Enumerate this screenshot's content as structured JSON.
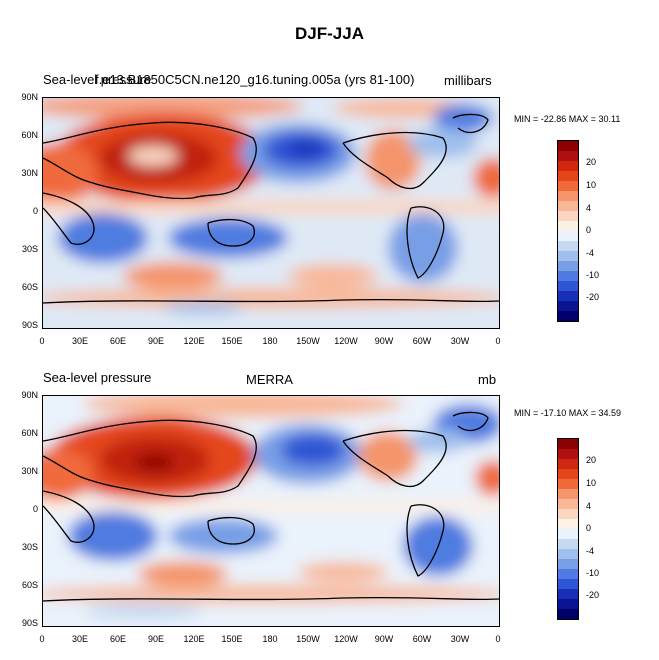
{
  "title": "DJF-JJA",
  "panels": [
    {
      "left_title": "Sea-level pressure",
      "center_title": "f.e13.B1850C5CN.ne120_g16.tuning.005a (yrs 81-100)",
      "right_title": "millibars",
      "min_max": "MIN = -22.86 MAX =  30.11"
    },
    {
      "left_title": "Sea-level pressure",
      "center_title": "MERRA",
      "right_title": "mb",
      "min_max": "MIN = -17.10 MAX =  34.59"
    }
  ],
  "lat_labels": [
    "90N",
    "60N",
    "30N",
    "0",
    "30S",
    "60S",
    "90S"
  ],
  "lon_labels": [
    "0",
    "30E",
    "60E",
    "90E",
    "120E",
    "150E",
    "180",
    "150W",
    "120W",
    "90W",
    "60W",
    "30W",
    "0"
  ],
  "colorbar": {
    "labels": [
      "20",
      "10",
      "4",
      "0",
      "-4",
      "-10",
      "-20"
    ],
    "colors": [
      "#8b0000",
      "#b01010",
      "#d02810",
      "#e4461a",
      "#f06a3c",
      "#f4956c",
      "#f8b898",
      "#fbd6c0",
      "#fdf0e4",
      "#eaf2fb",
      "#c6d9f2",
      "#9fbfec",
      "#789fe6",
      "#4f7be0",
      "#2e55d4",
      "#1830b8",
      "#0a1490",
      "#00006a"
    ]
  }
}
